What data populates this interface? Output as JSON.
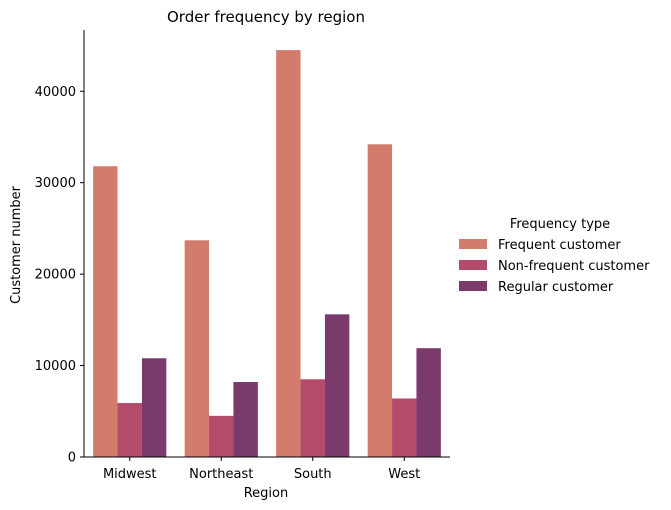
{
  "chart_data": {
    "type": "bar",
    "title": "Order frequency by region",
    "xlabel": "Region",
    "ylabel": "Customer number",
    "categories": [
      "Midwest",
      "Northeast",
      "South",
      "West"
    ],
    "series": [
      {
        "name": "Frequent customer",
        "color": "#d47c6c",
        "values": [
          31800,
          23700,
          44500,
          34200
        ]
      },
      {
        "name": "Non-frequent customer",
        "color": "#b34c6a",
        "values": [
          5900,
          4500,
          8500,
          6400
        ]
      },
      {
        "name": "Regular customer",
        "color": "#7a3a6c",
        "values": [
          10800,
          8200,
          15600,
          11900
        ]
      }
    ],
    "ylim": [
      0,
      46700
    ],
    "yticks": [
      0,
      10000,
      20000,
      30000,
      40000
    ],
    "legend": {
      "title": "Frequency type",
      "placement": "right"
    },
    "grid": false
  }
}
